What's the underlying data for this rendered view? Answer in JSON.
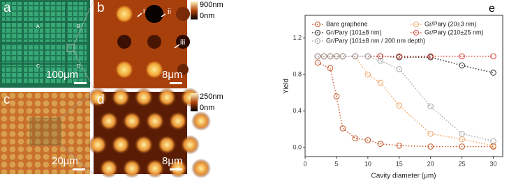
{
  "panels": {
    "a": {
      "label": "a",
      "scale": "100μm",
      "marks": [
        "A",
        "B",
        "C",
        "D"
      ]
    },
    "b": {
      "label": "b",
      "scale": "8μm",
      "colorbar_max": "900nm",
      "colorbar_min": "0nm",
      "arrows": [
        "i",
        "ii",
        "iii"
      ]
    },
    "c": {
      "label": "c",
      "scale": "20μm"
    },
    "d": {
      "label": "d",
      "scale": "8μm",
      "colorbar_max": "250nm",
      "colorbar_min": "0nm"
    }
  },
  "chart_data": {
    "type": "line",
    "panel_label": "e",
    "x_label": "Cavity diameter (μm)",
    "y_label": "Yield",
    "xlim": [
      0,
      31.5
    ],
    "ylim": [
      -0.1,
      1.45
    ],
    "xticks": [
      0,
      5,
      10,
      15,
      20,
      25,
      30
    ],
    "yticks": [
      {
        "value": 0,
        "label": "0.0"
      },
      0.4,
      0.8,
      1.2
    ],
    "series": [
      {
        "name": "Bare graphene",
        "color": "#c8582a",
        "x": [
          2,
          4,
          5,
          6,
          8,
          10,
          12,
          15,
          20,
          25,
          30
        ],
        "values": [
          0.93,
          0.87,
          0.56,
          0.21,
          0.1,
          0.08,
          0.04,
          0.02,
          0.01,
          0.01,
          0.01
        ]
      },
      {
        "name": "Gr/Pary (20±3 nm)",
        "color": "#f0a868",
        "x": [
          2,
          3,
          4,
          5,
          6,
          8,
          10,
          12,
          15,
          20,
          25,
          30
        ],
        "values": [
          1.0,
          1.0,
          1.0,
          1.0,
          1.0,
          1.0,
          0.8,
          0.71,
          0.46,
          0.15,
          0.09,
          0.02
        ]
      },
      {
        "name": "Gr/Pary (101±8 nm)",
        "color": "#333333",
        "x": [
          2,
          3,
          4,
          5,
          6,
          8,
          10,
          12,
          15,
          20,
          25,
          30
        ],
        "values": [
          1.0,
          1.0,
          1.0,
          1.0,
          1.0,
          1.0,
          1.0,
          1.0,
          0.99,
          0.99,
          0.9,
          0.82
        ]
      },
      {
        "name": "Gr/Pary (210±25 nm)",
        "color": "#d9443a",
        "x": [
          2,
          3,
          4,
          5,
          6,
          8,
          10,
          12,
          15,
          20,
          25,
          30
        ],
        "values": [
          1.0,
          1.0,
          1.0,
          1.0,
          1.0,
          1.0,
          1.0,
          1.0,
          1.0,
          1.0,
          1.0,
          1.0
        ]
      },
      {
        "name": "Gr/Pary (101±8 nm / 200 nm depth)",
        "color": "#aaaaaa",
        "x": [
          2,
          3,
          4,
          5,
          6,
          8,
          10,
          12,
          15,
          20,
          25,
          30
        ],
        "values": [
          1.0,
          1.0,
          1.0,
          1.0,
          1.0,
          1.0,
          1.0,
          0.95,
          0.86,
          0.45,
          0.15,
          0.07
        ]
      }
    ]
  }
}
